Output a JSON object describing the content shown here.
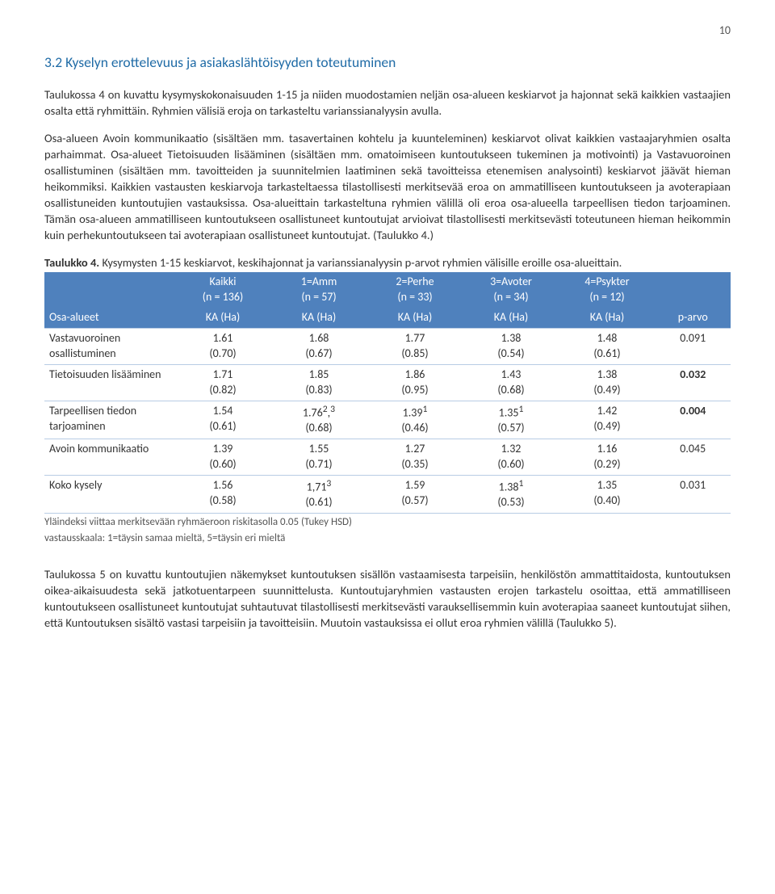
{
  "page_number": "10",
  "section_heading": "3.2   Kyselyn erottelevuus ja asiakaslähtöisyyden toteutuminen",
  "para1": "Taulukossa 4 on kuvattu kysymyskokonaisuuden 1-15  ja niiden muodostamien neljän osa-alueen keskiarvot ja hajonnat sekä kaikkien vastaajien osalta että ryhmittäin. Ryhmien välisiä eroja on tarkasteltu varianssianalyysin avulla.",
  "para2": "Osa-alueen Avoin kommunikaatio (sisältäen mm. tasavertainen kohtelu ja kuunteleminen) keskiarvot olivat kaikkien vastaajaryhmien osalta parhaimmat. Osa-alueet Tietoisuuden lisääminen (sisältäen mm. omatoimiseen kuntoutukseen tukeminen ja motivointi) ja Vastavuoroinen osallistuminen (sisältäen mm. tavoitteiden ja suunnitelmien laatiminen sekä tavoitteissa etenemisen analysointi) keskiarvot jäävät hieman heikommiksi. Kaikkien vastausten keskiarvoja tarkasteltaessa tilastollisesti merkitsevää eroa on ammatilliseen kuntoutukseen ja avoterapiaan osallistuneiden kuntoutujien vastauksissa. Osa-alueittain tarkasteltuna ryhmien välillä oli eroa osa-alueella tarpeellisen tiedon tarjoaminen. Tämän osa-alueen ammatilliseen kuntoutukseen osallistuneet kuntoutujat arvioivat tilastollisesti merkitsevästi toteutuneen hieman heikommin kuin perhekuntoutukseen tai avoterapiaan osallistuneet kuntoutujat. (Taulukko 4.)",
  "table4": {
    "title_bold": "Taulukko 4.",
    "title_rest": " Kysymysten 1-15 keskiarvot, keskihajonnat ja varianssianalyysin p-arvot ryhmien välisille eroille osa-alueittain.",
    "header_bg": "#4f81bd",
    "header_fg": "#ffffff",
    "row_border": "#b8cce4",
    "groups": [
      {
        "line1": "Kaikki",
        "line2": "(n = 136)"
      },
      {
        "line1": "1=Amm",
        "line2": "(n = 57)"
      },
      {
        "line1": "2=Perhe",
        "line2": "(n = 33)"
      },
      {
        "line1": "3=Avoter",
        "line2": "(n = 34)"
      },
      {
        "line1": "4=Psykter",
        "line2": "(n = 12)"
      }
    ],
    "h2": [
      "Osa-alueet",
      "KA (Ha)",
      "KA (Ha)",
      "KA (Ha)",
      "KA (Ha)",
      "KA (Ha)",
      "p-arvo"
    ],
    "rows": [
      {
        "label": "Vastavuoroinen osallistuminen",
        "c": [
          "1.61 (0.70)",
          "1.68 (0.67)",
          "1.77 (0.85)",
          "1.38 (0.54)",
          "1.48 (0.61)"
        ],
        "p": "0.091",
        "p_bold": false
      },
      {
        "label": "Tietoisuuden lisääminen",
        "c": [
          "1.71 (0.82)",
          "1.85 (0.83)",
          "1.86 (0.95)",
          "1.43 (0.68)",
          "1.38 (0.49)"
        ],
        "p": "0.032",
        "p_bold": true
      },
      {
        "label": "Tarpeellisen tiedon tarjoaminen",
        "c": [
          "1.54 (0.61)",
          "1.76²,³ (0.68)",
          "1.39¹ (0.46)",
          "1.35¹ (0.57)",
          "1.42 (0.49)"
        ],
        "p": "0.004",
        "p_bold": true
      },
      {
        "label": "Avoin kommunikaatio",
        "c": [
          "1.39 (0.60)",
          "1.55 (0.71)",
          "1.27 (0.35)",
          "1.32 (0.60)",
          "1.16 (0.29)"
        ],
        "p": "0.045",
        "p_bold": false
      },
      {
        "label": "Koko kysely",
        "c": [
          "1.56 (0.58)",
          "1,71³ (0.61)",
          "1.59 (0.57)",
          "1.38¹ (0.53)",
          "1.35 (0.40)"
        ],
        "p": "0.031",
        "p_bold": false
      }
    ],
    "footnote1": "Yläindeksi viittaa merkitsevään ryhmäeroon riskitasolla 0.05 (Tukey HSD)",
    "footnote2": "vastausskaala: 1=täysin samaa mieltä, 5=täysin eri mieltä"
  },
  "para3": "Taulukossa 5 on kuvattu kuntoutujien näkemykset kuntoutuksen sisällön vastaamisesta tarpeisiin, henkilöstön ammattitaidosta, kuntoutuksen oikea-aikaisuudesta sekä jatkotuentarpeen suunnittelusta. Kuntoutujaryhmien vastausten erojen tarkastelu osoittaa, että ammatilliseen kuntoutukseen osallistuneet kuntoutujat suhtautuvat tilastollisesti merkitsevästi varauksellisemmin kuin avoterapiaa saaneet kuntoutujat siihen, että Kuntoutuksen sisältö vastasi tarpeisiin ja tavoitteisiin. Muutoin vastauksissa ei ollut eroa ryhmien välillä (Taulukko 5)."
}
